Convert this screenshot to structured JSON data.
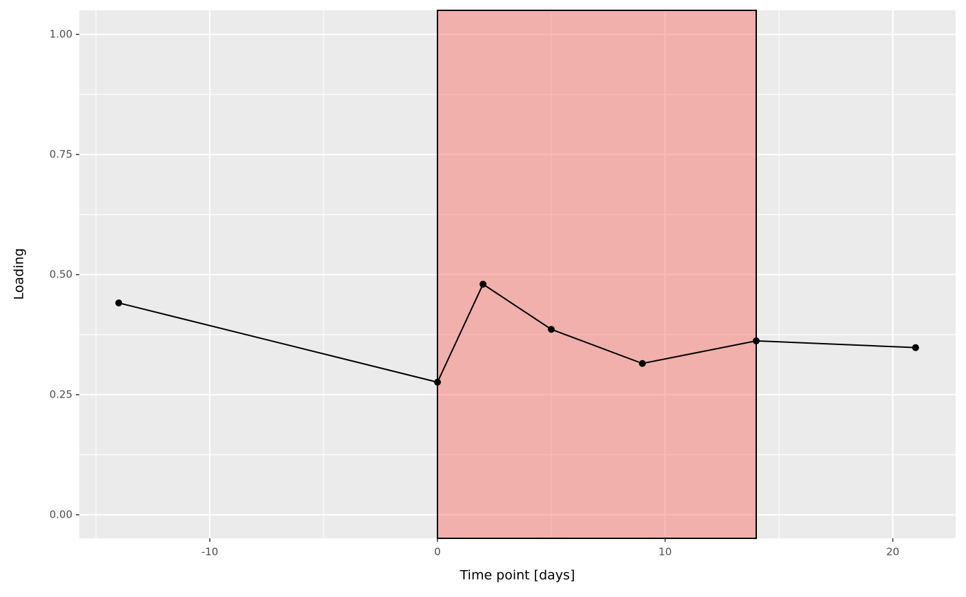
{
  "chart_data": {
    "type": "line",
    "x_label": "Time point [days]",
    "y_label": "Loading",
    "x": [
      -14,
      0,
      2,
      5,
      9,
      14,
      21
    ],
    "series": [
      {
        "color": "#000000",
        "values": [
          0.441,
          0.276,
          0.48,
          0.386,
          0.315,
          0.362,
          0.348
        ]
      }
    ],
    "highlight_x": [
      0,
      14
    ],
    "highlight_color": "#f8766d",
    "xlim": [
      -15.73,
      22.76
    ],
    "xticks": [
      -10,
      0,
      10,
      20
    ],
    "ylim": [
      -0.049,
      1.05
    ],
    "yticks": [
      {
        "value": 0,
        "label": "0.00"
      },
      {
        "value": 0.25,
        "label": "0.25"
      },
      {
        "value": 0.5,
        "label": "0.50"
      },
      {
        "value": 0.75,
        "label": "0.75"
      },
      {
        "value": 1,
        "label": "1.00"
      }
    ],
    "grid": true
  }
}
